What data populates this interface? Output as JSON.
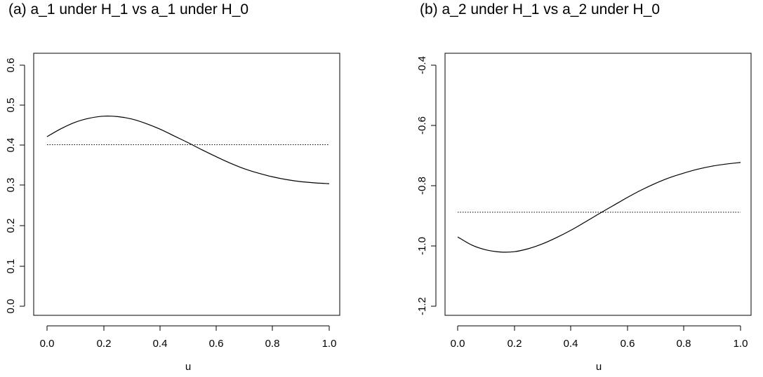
{
  "chart_data": [
    {
      "type": "line",
      "title": "(a) a_1 under H_1 vs a_1 under H_0",
      "xlabel": "u",
      "ylabel": "",
      "xlim": [
        0.0,
        1.0
      ],
      "ylim": [
        0.0,
        0.6
      ],
      "xticks": [
        "0.0",
        "0.2",
        "0.4",
        "0.6",
        "0.8",
        "1.0"
      ],
      "yticks": [
        "0.0",
        "0.1",
        "0.2",
        "0.3",
        "0.4",
        "0.5",
        "0.6"
      ],
      "grid": false,
      "series": [
        {
          "style": "solid",
          "x": [
            0.0,
            0.05,
            0.1,
            0.15,
            0.2,
            0.25,
            0.3,
            0.35,
            0.4,
            0.45,
            0.5,
            0.55,
            0.6,
            0.65,
            0.7,
            0.75,
            0.8,
            0.85,
            0.9,
            0.95,
            1.0
          ],
          "y": [
            0.422,
            0.442,
            0.458,
            0.468,
            0.473,
            0.472,
            0.466,
            0.455,
            0.441,
            0.424,
            0.407,
            0.389,
            0.372,
            0.356,
            0.342,
            0.331,
            0.322,
            0.315,
            0.31,
            0.307,
            0.305
          ]
        },
        {
          "style": "dotted",
          "x": [
            0.0,
            1.0
          ],
          "y": [
            0.402,
            0.402
          ]
        }
      ]
    },
    {
      "type": "line",
      "title": "(b) a_2 under H_1 vs a_2 under H_0",
      "xlabel": "u",
      "ylabel": "",
      "xlim": [
        0.0,
        1.0
      ],
      "ylim": [
        -1.2,
        -0.4
      ],
      "xticks": [
        "0.0",
        "0.2",
        "0.4",
        "0.6",
        "0.8",
        "1.0"
      ],
      "yticks": [
        "-1.2",
        "-1.0",
        "-0.8",
        "-0.6",
        "-0.4"
      ],
      "grid": false,
      "series": [
        {
          "style": "solid",
          "x": [
            0.0,
            0.05,
            0.1,
            0.15,
            0.2,
            0.25,
            0.3,
            0.35,
            0.4,
            0.45,
            0.5,
            0.55,
            0.6,
            0.65,
            0.7,
            0.75,
            0.8,
            0.85,
            0.9,
            0.95,
            1.0
          ],
          "y": [
            -0.97,
            -0.997,
            -1.013,
            -1.02,
            -1.019,
            -1.009,
            -0.993,
            -0.972,
            -0.948,
            -0.921,
            -0.893,
            -0.866,
            -0.839,
            -0.814,
            -0.792,
            -0.773,
            -0.758,
            -0.745,
            -0.735,
            -0.728,
            -0.723
          ]
        },
        {
          "style": "dotted",
          "x": [
            0.0,
            1.0
          ],
          "y": [
            -0.888,
            -0.888
          ]
        }
      ]
    }
  ]
}
